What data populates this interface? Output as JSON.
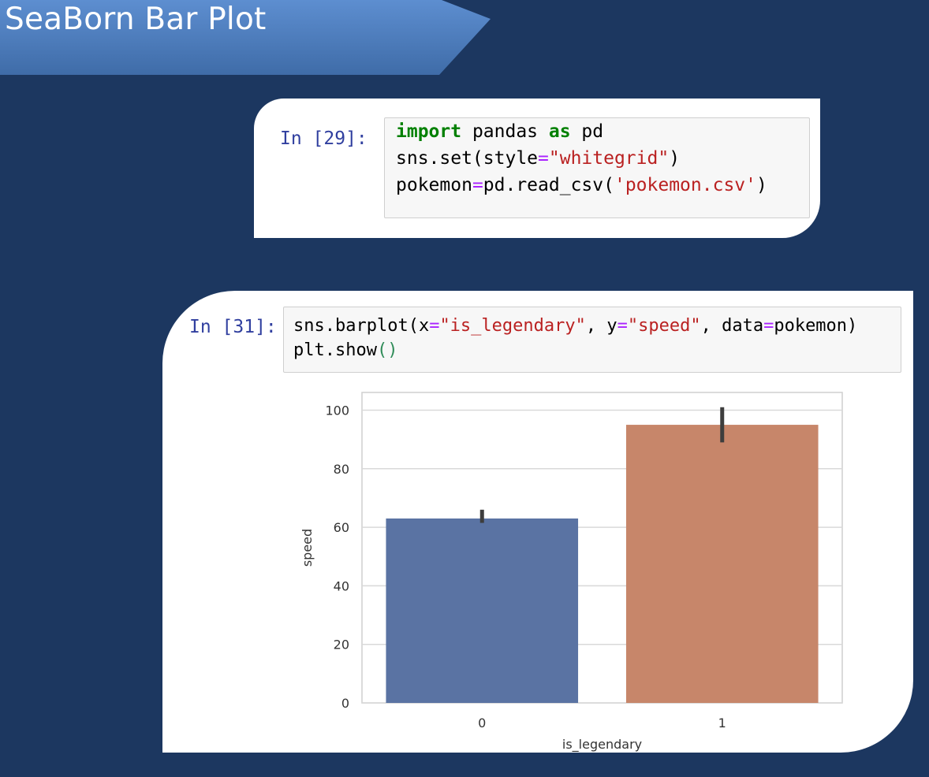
{
  "slide": {
    "title": "SeaBorn Bar Plot",
    "background": "#1c3760",
    "banner_color": "#4a7bbd"
  },
  "cell1": {
    "prompt": "In [29]:",
    "lines": [
      [
        {
          "t": "import",
          "c": "kw"
        },
        {
          "t": " pandas ",
          "c": ""
        },
        {
          "t": "as",
          "c": "kw"
        },
        {
          "t": " pd",
          "c": ""
        }
      ],
      [
        {
          "t": "sns.set(style",
          "c": ""
        },
        {
          "t": "=",
          "c": "op"
        },
        {
          "t": "\"whitegrid\"",
          "c": "str"
        },
        {
          "t": ")",
          "c": ""
        }
      ],
      [
        {
          "t": "pokemon",
          "c": ""
        },
        {
          "t": "=",
          "c": "op"
        },
        {
          "t": "pd.read_csv(",
          "c": ""
        },
        {
          "t": "'pokemon.csv'",
          "c": "str"
        },
        {
          "t": ")",
          "c": ""
        }
      ]
    ]
  },
  "cell2": {
    "prompt": "In [31]:",
    "lines": [
      [
        {
          "t": "sns.barplot(x",
          "c": ""
        },
        {
          "t": "=",
          "c": "op"
        },
        {
          "t": "\"is_legendary\"",
          "c": "str"
        },
        {
          "t": ", y",
          "c": ""
        },
        {
          "t": "=",
          "c": "op"
        },
        {
          "t": "\"speed\"",
          "c": "str"
        },
        {
          "t": ", data",
          "c": ""
        },
        {
          "t": "=",
          "c": "op"
        },
        {
          "t": "pokemon)",
          "c": ""
        }
      ],
      [
        {
          "t": "plt.show",
          "c": ""
        },
        {
          "t": "()",
          "c": "par"
        }
      ]
    ]
  },
  "chart_data": {
    "type": "bar",
    "categories": [
      "0",
      "1"
    ],
    "values": [
      63,
      95
    ],
    "error_bars": [
      [
        61.5,
        66
      ],
      [
        89,
        101
      ]
    ],
    "colors": [
      "#5a73a3",
      "#c7866a"
    ],
    "errorbar_color": "#3d3d3d",
    "xlabel": "is_legendary",
    "ylabel": "speed",
    "ylim": [
      0,
      100
    ],
    "yticks": [
      0,
      20,
      40,
      60,
      80,
      100
    ],
    "grid": true
  }
}
